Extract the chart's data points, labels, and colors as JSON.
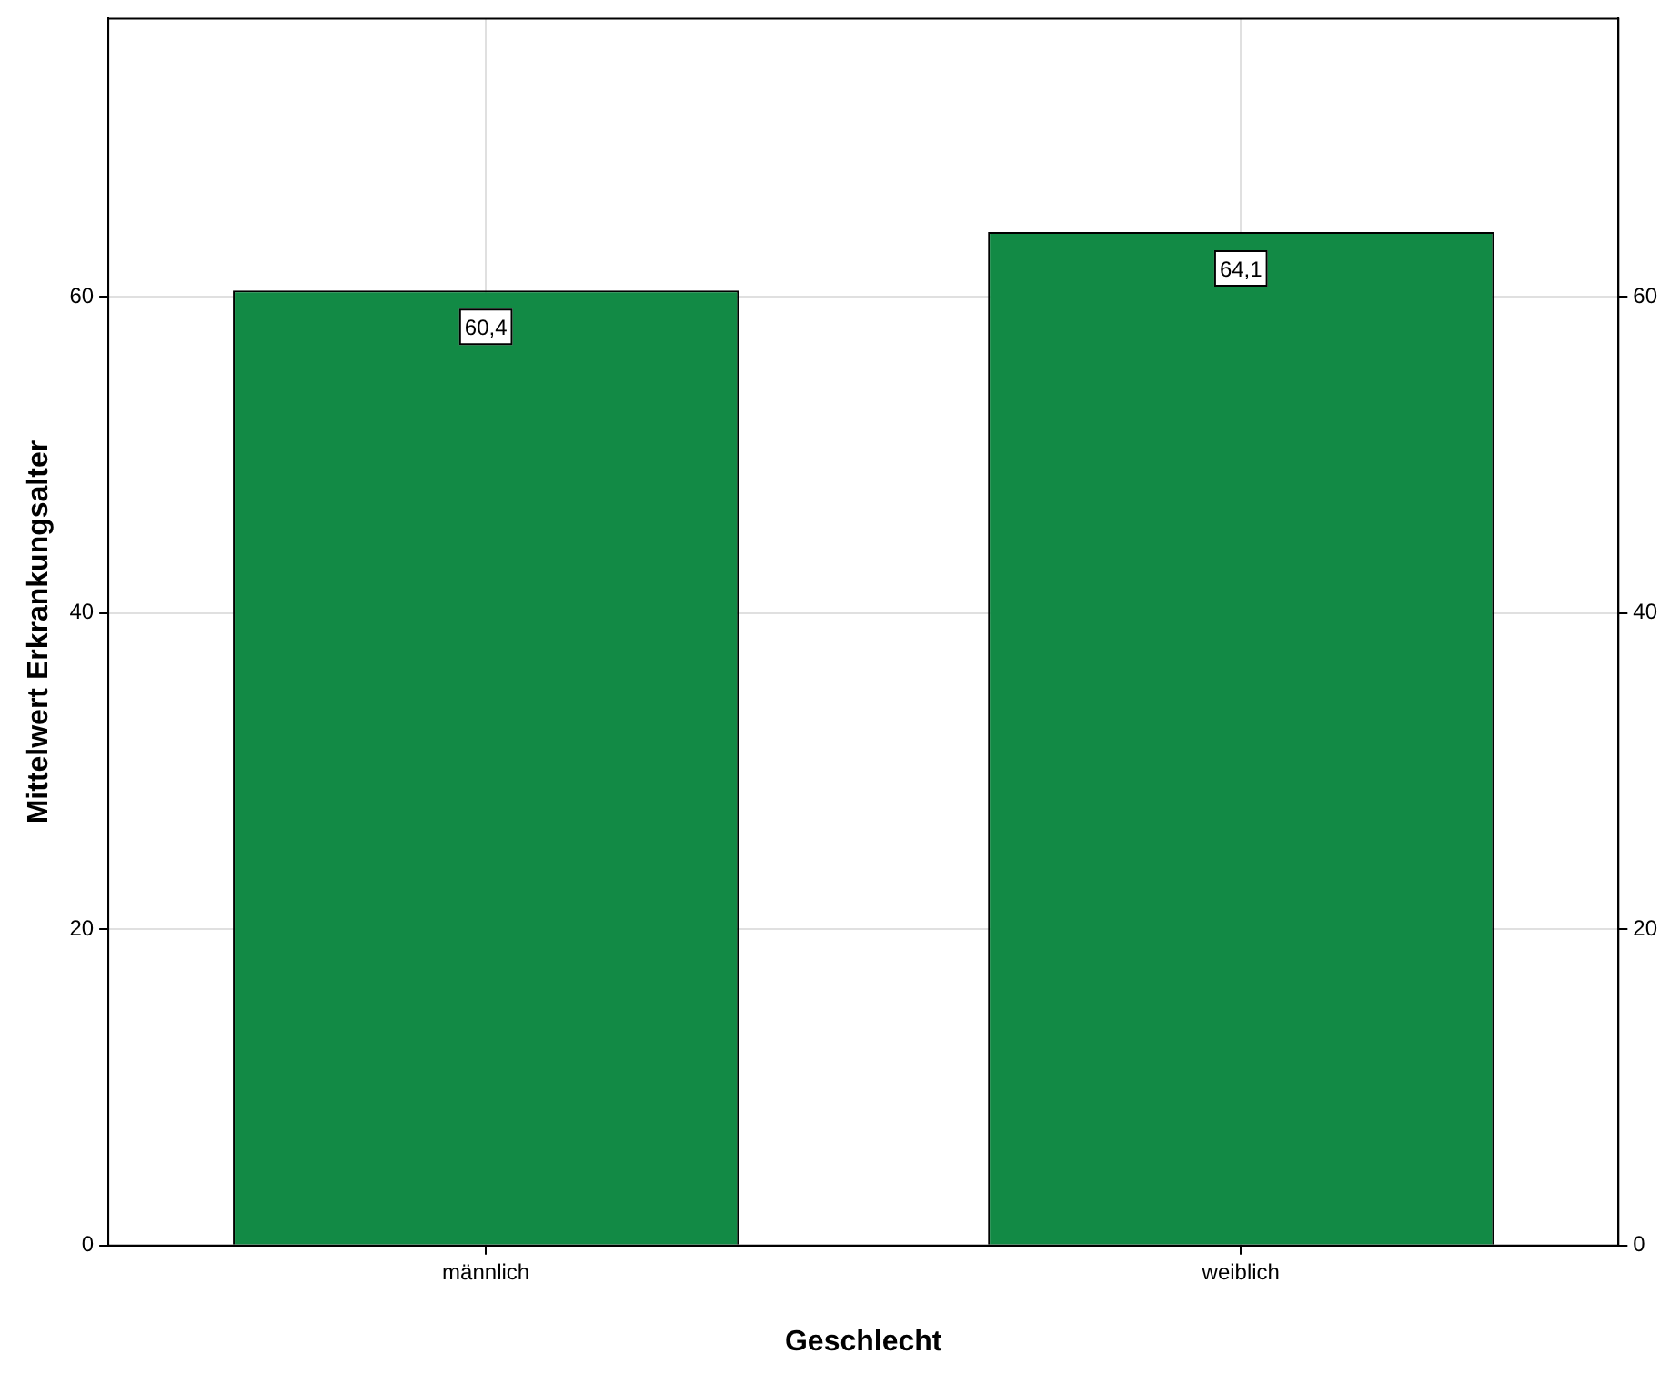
{
  "chart_data": {
    "type": "bar",
    "xlabel": "Geschlecht",
    "ylabel": "Mittelwert Erkrankungsalter",
    "categories": [
      "männlich",
      "weiblich"
    ],
    "values": [
      60.4,
      64.1
    ],
    "color": "#128a45",
    "value_labels": [
      "60,4",
      "64,1"
    ],
    "ylim": [
      0,
      77.6
    ],
    "yticks": [
      0,
      20,
      40,
      60
    ],
    "y2lim": [
      0,
      77.6
    ],
    "y2ticks": [
      0,
      20,
      40,
      60
    ],
    "grid": true,
    "legend": false
  }
}
